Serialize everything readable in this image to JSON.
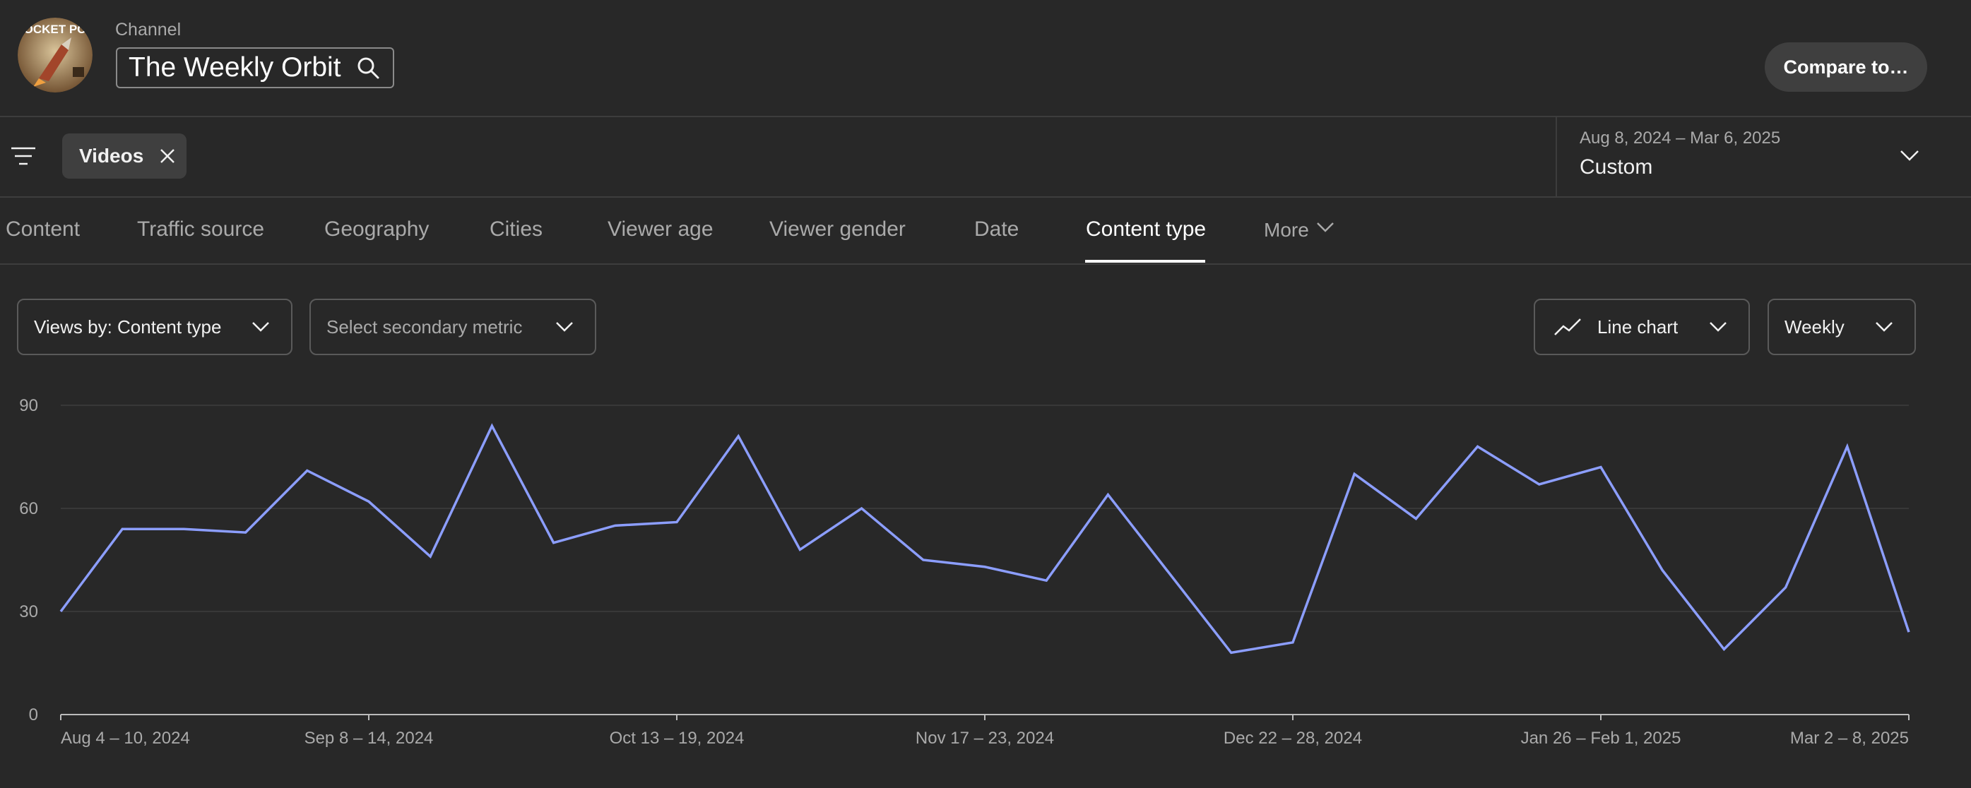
{
  "header": {
    "channel_label": "Channel",
    "channel_name": "The Weekly Orbit",
    "compare_label": "Compare to…",
    "avatar_logo_text": "ROCKET POD"
  },
  "filters": {
    "chip_label": "Videos",
    "date_range": "Aug 8, 2024 – Mar 6, 2025",
    "date_preset": "Custom"
  },
  "tabs": [
    "Content",
    "Traffic source",
    "Geography",
    "Cities",
    "Viewer age",
    "Viewer gender",
    "Date",
    "Content type",
    "More"
  ],
  "active_tab": "Content type",
  "controls": {
    "metric": "Views by: Content type",
    "secondary_placeholder": "Select secondary metric",
    "chart_type": "Line chart",
    "interval": "Weekly"
  },
  "colors": {
    "background": "#282828",
    "line": "#8c9eff",
    "gridline": "#3d3d3d",
    "axis": "#aaaaaa"
  },
  "icons": [
    "filter-icon",
    "close-icon",
    "search-icon",
    "chevron-down-icon",
    "line-chart-icon"
  ],
  "chart_data": {
    "type": "line",
    "ylim": [
      0,
      90
    ],
    "yticks": [
      0,
      30,
      60,
      90
    ],
    "x_tick_labels": [
      "Aug 4 – 10, 2024",
      "Sep 8 – 14, 2024",
      "Oct 13 – 19, 2024",
      "Nov 17 – 23, 2024",
      "Dec 22 – 28, 2024",
      "Jan 26 – Feb 1, 2025",
      "Mar 2 – 8, 2025"
    ],
    "x_tick_week_index": [
      0,
      5,
      10,
      15,
      20,
      25,
      30
    ],
    "grid": true,
    "series": [
      {
        "values": [
          30,
          54,
          54,
          53,
          71,
          62,
          46,
          84,
          50,
          55,
          56,
          81,
          48,
          60,
          45,
          43,
          39,
          64,
          41,
          18,
          21,
          70,
          57,
          78,
          67,
          72,
          42,
          19,
          37,
          78,
          24
        ]
      }
    ]
  }
}
